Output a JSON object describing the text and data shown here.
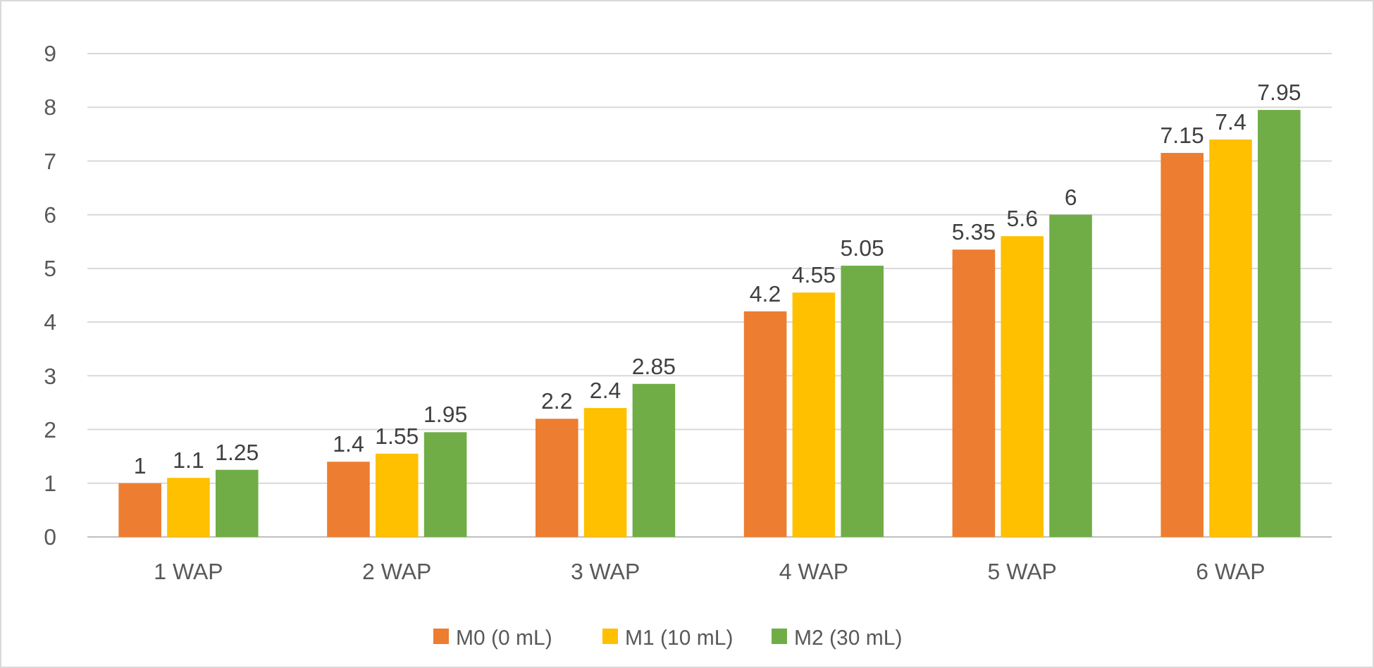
{
  "chart_data": {
    "type": "bar",
    "categories": [
      "1 WAP",
      "2 WAP",
      "3 WAP",
      "4 WAP",
      "5 WAP",
      "6 WAP"
    ],
    "series": [
      {
        "name": "M0 (0 mL)",
        "color": "#ed7d31",
        "values": [
          1,
          1.4,
          2.2,
          4.2,
          5.35,
          7.15
        ]
      },
      {
        "name": "M1 (10 mL)",
        "color": "#ffc000",
        "values": [
          1.1,
          1.55,
          2.4,
          4.55,
          5.6,
          7.4
        ]
      },
      {
        "name": "M2 (30 mL)",
        "color": "#70ad47",
        "values": [
          1.25,
          1.95,
          2.85,
          5.05,
          6,
          7.95
        ]
      }
    ],
    "ylim": [
      0,
      9
    ],
    "yticks": [
      0,
      1,
      2,
      3,
      4,
      5,
      6,
      7,
      8,
      9
    ],
    "grid": "y",
    "legend": "bottom",
    "data_labels": true
  }
}
